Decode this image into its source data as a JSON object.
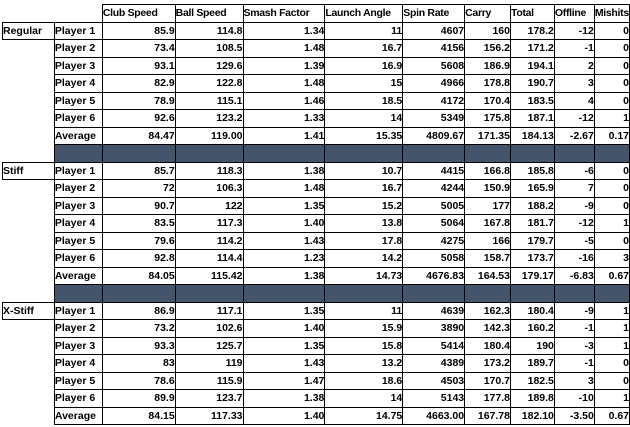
{
  "colors": {
    "separator_fill": "#44546A",
    "gridline": "#000000",
    "text": "#000000",
    "background": "#FFFFFF"
  },
  "table": {
    "column_headers": [
      "Club Speed",
      "Ball Speed",
      "Smash Factor",
      "Launch Angle",
      "Spin Rate",
      "Carry",
      "Total",
      "Offline",
      "Mishits"
    ],
    "sections": [
      {
        "label": "Regular",
        "average_label": "Average",
        "players": [
          {
            "label": "Player 1",
            "values": [
              "85.9",
              "114.8",
              "1.34",
              "11",
              "4607",
              "160",
              "178.2",
              "-12",
              "0"
            ]
          },
          {
            "label": "Player 2",
            "values": [
              "73.4",
              "108.5",
              "1.48",
              "16.7",
              "4156",
              "156.2",
              "171.2",
              "-1",
              "0"
            ]
          },
          {
            "label": "Player 3",
            "values": [
              "93.1",
              "129.6",
              "1.39",
              "16.9",
              "5608",
              "186.9",
              "194.1",
              "2",
              "0"
            ]
          },
          {
            "label": "Player 4",
            "values": [
              "82.9",
              "122.8",
              "1.48",
              "15",
              "4966",
              "178.8",
              "190.7",
              "3",
              "0"
            ]
          },
          {
            "label": "Player 5",
            "values": [
              "78.9",
              "115.1",
              "1.46",
              "18.5",
              "4172",
              "170.4",
              "183.5",
              "4",
              "0"
            ]
          },
          {
            "label": "Player 6",
            "values": [
              "92.6",
              "123.2",
              "1.33",
              "14",
              "5349",
              "175.8",
              "187.1",
              "-12",
              "1"
            ]
          }
        ],
        "average": [
          "84.47",
          "119.00",
          "1.41",
          "15.35",
          "4809.67",
          "171.35",
          "184.13",
          "-2.67",
          "0.17"
        ]
      },
      {
        "label": "Stiff",
        "average_label": "Average",
        "players": [
          {
            "label": "Player 1",
            "values": [
              "85.7",
              "118.3",
              "1.38",
              "10.7",
              "4415",
              "166.8",
              "185.8",
              "-6",
              "0"
            ]
          },
          {
            "label": "Player 2",
            "values": [
              "72",
              "106.3",
              "1.48",
              "16.7",
              "4244",
              "150.9",
              "165.9",
              "7",
              "0"
            ]
          },
          {
            "label": "Player 3",
            "values": [
              "90.7",
              "122",
              "1.35",
              "15.2",
              "5005",
              "177",
              "188.2",
              "-9",
              "0"
            ]
          },
          {
            "label": "Player 4",
            "values": [
              "83.5",
              "117.3",
              "1.40",
              "13.8",
              "5064",
              "167.8",
              "181.7",
              "-12",
              "1"
            ]
          },
          {
            "label": "Player 5",
            "values": [
              "79.6",
              "114.2",
              "1.43",
              "17.8",
              "4275",
              "166",
              "179.7",
              "-5",
              "0"
            ]
          },
          {
            "label": "Player 6",
            "values": [
              "92.8",
              "114.4",
              "1.23",
              "14.2",
              "5058",
              "158.7",
              "173.7",
              "-16",
              "3"
            ]
          }
        ],
        "average": [
          "84.05",
          "115.42",
          "1.38",
          "14.73",
          "4676.83",
          "164.53",
          "179.17",
          "-6.83",
          "0.67"
        ]
      },
      {
        "label": "X-Stiff",
        "average_label": "Average",
        "players": [
          {
            "label": "Player 1",
            "values": [
              "86.9",
              "117.1",
              "1.35",
              "11",
              "4639",
              "162.3",
              "180.4",
              "-9",
              "1"
            ]
          },
          {
            "label": "Player 2",
            "values": [
              "73.2",
              "102.6",
              "1.40",
              "15.9",
              "3890",
              "142.3",
              "160.2",
              "-1",
              "1"
            ]
          },
          {
            "label": "Player 3",
            "values": [
              "93.3",
              "125.7",
              "1.35",
              "15.8",
              "5414",
              "180.4",
              "190",
              "-3",
              "1"
            ]
          },
          {
            "label": "Player 4",
            "values": [
              "83",
              "119",
              "1.43",
              "13.2",
              "4389",
              "173.2",
              "189.7",
              "-1",
              "0"
            ]
          },
          {
            "label": "Player 5",
            "values": [
              "78.6",
              "115.9",
              "1.47",
              "18.6",
              "4503",
              "170.7",
              "182.5",
              "3",
              "0"
            ]
          },
          {
            "label": "Player 6",
            "values": [
              "89.9",
              "123.7",
              "1.38",
              "14",
              "5143",
              "177.8",
              "189.8",
              "-10",
              "1"
            ]
          }
        ],
        "average": [
          "84.15",
          "117.33",
          "1.40",
          "14.75",
          "4663.00",
          "167.78",
          "182.10",
          "-3.50",
          "0.67"
        ]
      }
    ]
  }
}
